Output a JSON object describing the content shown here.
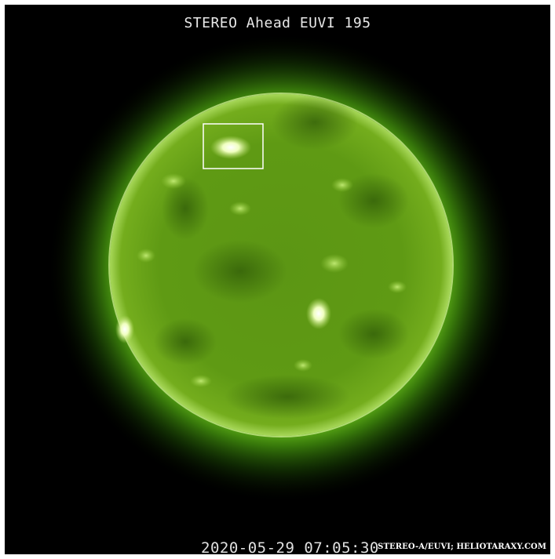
{
  "image": {
    "title": "STEREO Ahead EUVI 195",
    "timestamp": "2020-05-29 07:05:30",
    "credit": "STEREO-A/EUVI; HELIOTARAXY.COM",
    "subject": "sun-euv-disk",
    "colors": {
      "background": "#000000",
      "disk": "#5f9a12",
      "corona": "#6fc81e",
      "highlight": "#f4ffc8",
      "marker": "#ffffff"
    }
  }
}
